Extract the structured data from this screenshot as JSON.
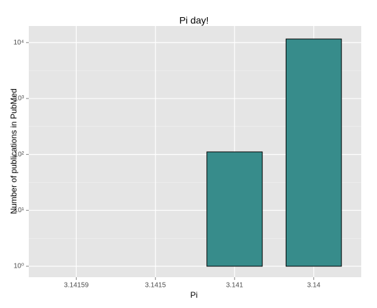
{
  "chart_data": {
    "type": "bar",
    "title": "Pi day!",
    "x_label": "Pi",
    "y_label": "Number of publications in PubMed",
    "categories": [
      "3.14159",
      "3.1415",
      "3.141",
      "3.14"
    ],
    "values": [
      1,
      1,
      111,
      11600
    ],
    "color": "#378c8b",
    "log_scale": true,
    "grid": true,
    "ylim": [
      0.637,
      19800
    ],
    "yticks": [
      {
        "value": 1,
        "label": "10⁰"
      },
      {
        "value": 10,
        "label": "10¹"
      },
      {
        "value": 100,
        "label": "10²"
      },
      {
        "value": 1000,
        "label": "10³"
      },
      {
        "value": 10000,
        "label": "10⁴"
      }
    ]
  }
}
